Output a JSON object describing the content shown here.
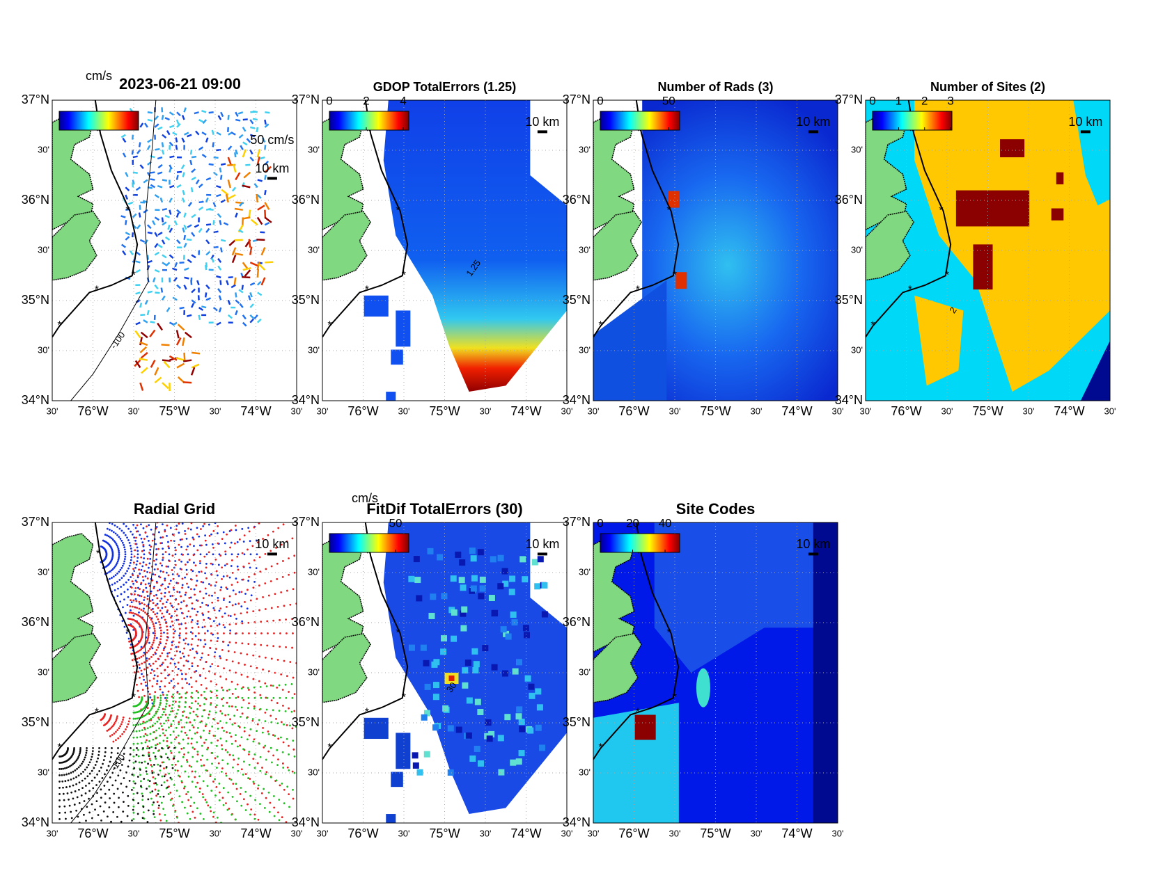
{
  "figure": {
    "latlim": [
      34,
      37
    ],
    "lonlim": [
      -76.5,
      -73.5
    ],
    "lat_ticks": [
      {
        "value": 37,
        "label": "37°N"
      },
      {
        "value": 36.5,
        "label": "30'"
      },
      {
        "value": 36,
        "label": "36°N"
      },
      {
        "value": 35.5,
        "label": "30'"
      },
      {
        "value": 35,
        "label": "35°N"
      },
      {
        "value": 34.5,
        "label": "30'"
      },
      {
        "value": 34,
        "label": "34°N"
      }
    ],
    "lon_ticks": [
      {
        "value": -76.5,
        "label": "30'"
      },
      {
        "value": -76,
        "label": "76°W"
      },
      {
        "value": -75.5,
        "label": "30'"
      },
      {
        "value": -75,
        "label": "75°W"
      },
      {
        "value": -74.5,
        "label": "30'"
      },
      {
        "value": -74,
        "label": "74°W"
      },
      {
        "value": -73.5,
        "label": "30'"
      }
    ],
    "panels": [
      {
        "title": "2023-06-21 09:00",
        "colorbar_unit": "cm/s",
        "vector_scale": "50 cm/s",
        "scale_bar": "10 km",
        "contour_label": "-100"
      },
      {
        "title": "GDOP TotalErrors (1.25)",
        "colorbar": {
          "clim": [
            0,
            4.3
          ],
          "ticks": [
            0,
            2,
            4
          ]
        },
        "scale_bar": "10 km",
        "contour_label": "1.25"
      },
      {
        "title": "Number of Rads (3)",
        "colorbar": {
          "clim": [
            0,
            58
          ],
          "ticks": [
            0,
            50
          ]
        },
        "scale_bar": "10 km"
      },
      {
        "title": "Number of Sites (2)",
        "colorbar": {
          "clim": [
            0,
            3.05
          ],
          "ticks": [
            0,
            1,
            2,
            3
          ]
        },
        "scale_bar": "10 km",
        "contour_label": "2"
      },
      {
        "title": "Radial Grid",
        "scale_bar": "10 km",
        "contour_label": "-100"
      },
      {
        "title": "FitDif TotalErrors (30)",
        "colorbar_unit": "cm/s",
        "colorbar": {
          "clim": [
            0,
            60
          ],
          "ticks": [
            50
          ]
        },
        "scale_bar": "10 km",
        "contour_label": "30"
      },
      {
        "title": "Site Codes",
        "colorbar": {
          "clim": [
            0,
            49
          ],
          "ticks": [
            0,
            20,
            40
          ]
        },
        "scale_bar": "10 km"
      }
    ]
  }
}
